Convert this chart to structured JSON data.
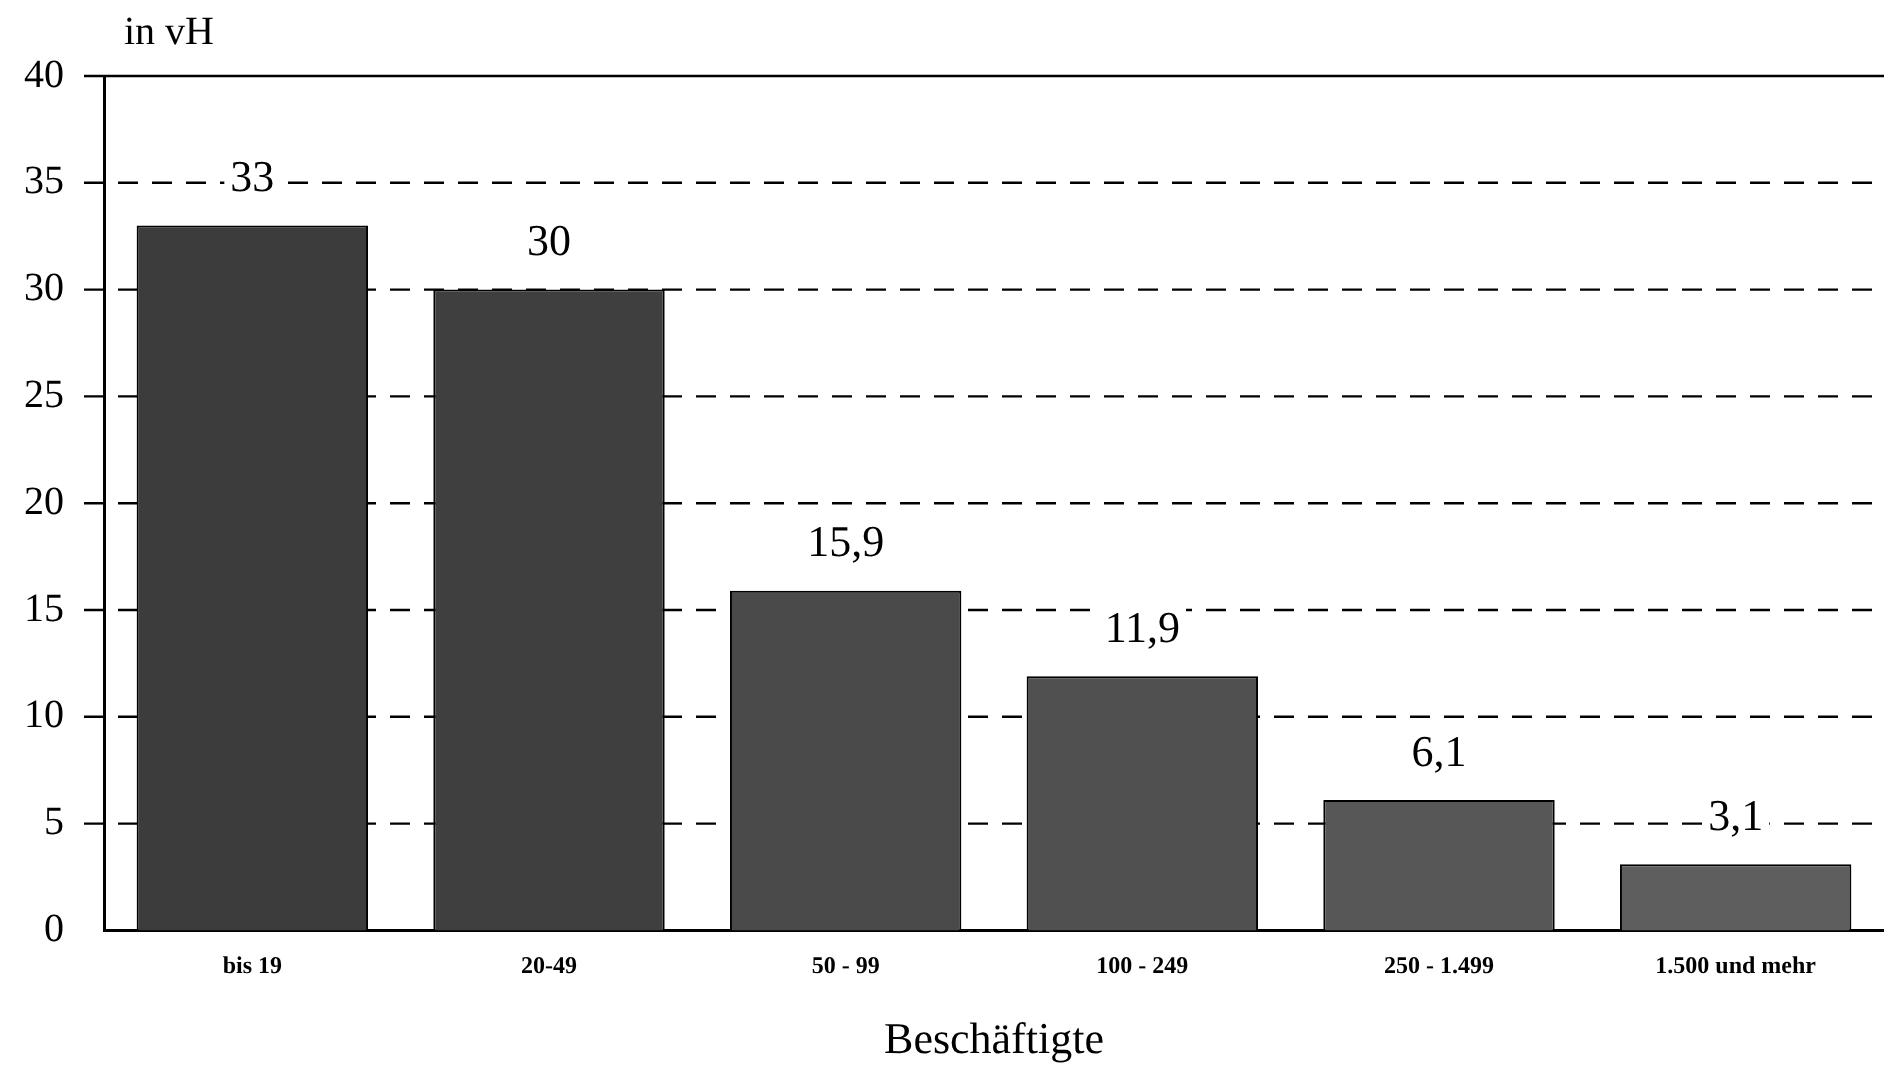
{
  "chart_data": {
    "type": "bar",
    "xlabel": "Beschäftigte",
    "ylabel": "in vH",
    "categories": [
      "bis 19",
      "20-49",
      "50 - 99",
      "100 - 249",
      "250 - 1.499",
      "1.500 und mehr"
    ],
    "values": [
      33,
      30,
      15.9,
      11.9,
      6.1,
      3.1
    ],
    "value_labels": [
      "33",
      "30",
      "15,9",
      "11,9",
      "6,1",
      "3,1"
    ],
    "colors": [
      "#3c3c3c",
      "#3f3f3f",
      "#4a4a4a",
      "#505050",
      "#575757",
      "#5e5e5e"
    ],
    "ylim": [
      0,
      40
    ],
    "yticks": [
      0,
      5,
      10,
      15,
      20,
      25,
      30,
      35,
      40
    ],
    "grid": "y",
    "legend": false
  }
}
